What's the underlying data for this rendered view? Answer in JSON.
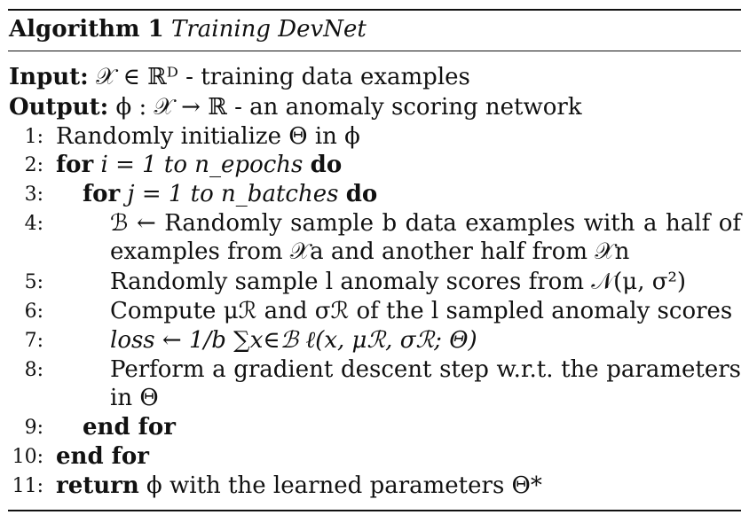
{
  "algorithm": {
    "label": "Algorithm 1",
    "name": "Training DevNet",
    "input_label": "Input:",
    "input_text": "𝒳 ∈ ℝᴰ - training data examples",
    "output_label": "Output:",
    "output_text": "ϕ : 𝒳 → ℝ - an anomaly scoring network",
    "steps": [
      {
        "num": "1:",
        "text": "Randomly initialize Θ in ϕ"
      },
      {
        "num": "2:",
        "kw1": "for",
        "text": "i = 1 to n_epochs",
        "kw2": "do"
      },
      {
        "num": "3:",
        "kw1": "for",
        "text": "j = 1 to n_batches",
        "kw2": "do"
      },
      {
        "num": "4:",
        "text": "ℬ ← Randomly sample b data examples with a half of",
        "cont": "examples from 𝒳a and another half from 𝒳n"
      },
      {
        "num": "5:",
        "text": "Randomly sample l anomaly scores from 𝒩(μ, σ²)"
      },
      {
        "num": "6:",
        "text": "Compute μℛ and σℛ of the l sampled anomaly scores"
      },
      {
        "num": "7:",
        "text": "loss ← 1/b ∑x∈ℬ ℓ(x, μℛ, σℛ; Θ)"
      },
      {
        "num": "8:",
        "text": "Perform a gradient descent step w.r.t. the parameters",
        "cont": "in Θ"
      },
      {
        "num": "9:",
        "kw1": "end for"
      },
      {
        "num": "10:",
        "kw1": "end for"
      },
      {
        "num": "11:",
        "kw1": "return",
        "text": "ϕ with the learned parameters Θ*"
      }
    ]
  }
}
